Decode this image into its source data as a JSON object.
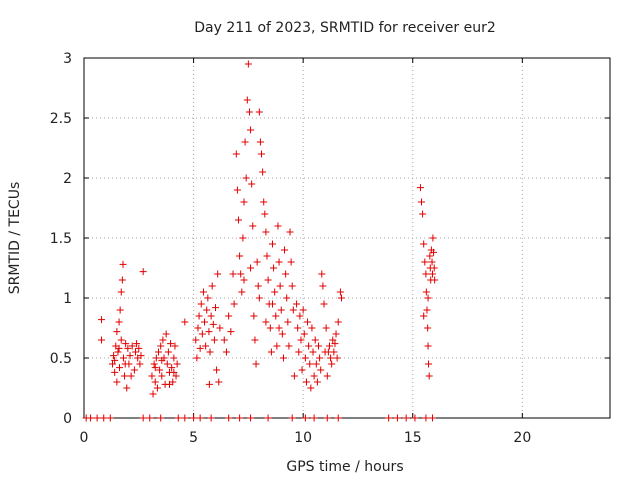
{
  "chart_data": {
    "type": "scatter",
    "title": "Day 211 of 2023, SRMTID for receiver eur2",
    "xlabel": "GPS time / hours",
    "ylabel": "SRMTID / TECUs",
    "xlim": [
      0,
      24
    ],
    "ylim": [
      0,
      3
    ],
    "x_ticks": [
      0,
      5,
      10,
      15,
      20
    ],
    "y_ticks": [
      0,
      0.5,
      1,
      1.5,
      2,
      2.5,
      3
    ],
    "x_tick_labels": [
      "0",
      "5",
      "10",
      "15",
      "20"
    ],
    "y_tick_labels": [
      "0",
      "0.5",
      "1",
      "1.5",
      "2",
      "2.5",
      "3"
    ],
    "grid": true,
    "marker": "+",
    "series": [
      {
        "name": "SRMTID",
        "color": "#e00000",
        "points": [
          [
            0.1,
            0
          ],
          [
            0.3,
            0
          ],
          [
            0.6,
            0
          ],
          [
            0.9,
            0
          ],
          [
            1.2,
            0
          ],
          [
            2.7,
            0
          ],
          [
            3.0,
            0
          ],
          [
            3.5,
            0
          ],
          [
            4.3,
            0
          ],
          [
            4.6,
            0
          ],
          [
            5.0,
            0
          ],
          [
            5.3,
            0
          ],
          [
            5.8,
            0
          ],
          [
            6.6,
            0
          ],
          [
            7.1,
            0
          ],
          [
            7.6,
            0
          ],
          [
            8.4,
            0
          ],
          [
            9.5,
            0
          ],
          [
            10.1,
            0
          ],
          [
            10.5,
            0
          ],
          [
            11.1,
            0
          ],
          [
            11.6,
            0
          ],
          [
            13.9,
            0
          ],
          [
            14.3,
            0
          ],
          [
            14.7,
            0
          ],
          [
            15.1,
            0
          ],
          [
            15.6,
            0
          ],
          [
            15.9,
            0
          ],
          [
            0.8,
            0.82
          ],
          [
            0.8,
            0.65
          ],
          [
            1.3,
            0.45
          ],
          [
            1.35,
            0.52
          ],
          [
            1.4,
            0.38
          ],
          [
            1.45,
            0.6
          ],
          [
            1.5,
            0.72
          ],
          [
            1.5,
            0.3
          ],
          [
            1.55,
            0.55
          ],
          [
            1.6,
            0.8
          ],
          [
            1.62,
            0.42
          ],
          [
            1.65,
            0.9
          ],
          [
            1.7,
            0.65
          ],
          [
            1.7,
            1.05
          ],
          [
            1.75,
            1.15
          ],
          [
            1.78,
            1.28
          ],
          [
            1.8,
            0.5
          ],
          [
            1.85,
            0.35
          ],
          [
            1.9,
            0.62
          ],
          [
            1.95,
            0.25
          ],
          [
            2.0,
            0.58
          ],
          [
            2.05,
            0.45
          ],
          [
            2.1,
            0.52
          ],
          [
            2.2,
            0.6
          ],
          [
            2.3,
            0.4
          ],
          [
            2.35,
            0.55
          ],
          [
            2.4,
            0.62
          ],
          [
            2.45,
            0.5
          ],
          [
            2.5,
            0.58
          ],
          [
            2.55,
            0.45
          ],
          [
            2.6,
            0.52
          ],
          [
            1.4,
            0.48
          ],
          [
            1.6,
            0.58
          ],
          [
            1.88,
            0.45
          ],
          [
            2.15,
            0.35
          ],
          [
            2.7,
            1.22
          ],
          [
            3.1,
            0.35
          ],
          [
            3.15,
            0.2
          ],
          [
            3.2,
            0.45
          ],
          [
            3.25,
            0.3
          ],
          [
            3.3,
            0.5
          ],
          [
            3.35,
            0.25
          ],
          [
            3.4,
            0.55
          ],
          [
            3.45,
            0.4
          ],
          [
            3.5,
            0.6
          ],
          [
            3.55,
            0.35
          ],
          [
            3.6,
            0.65
          ],
          [
            3.65,
            0.5
          ],
          [
            3.7,
            0.28
          ],
          [
            3.75,
            0.7
          ],
          [
            3.8,
            0.45
          ],
          [
            3.85,
            0.55
          ],
          [
            3.9,
            0.38
          ],
          [
            3.95,
            0.62
          ],
          [
            4.0,
            0.42
          ],
          [
            4.05,
            0.3
          ],
          [
            4.1,
            0.5
          ],
          [
            4.15,
            0.6
          ],
          [
            4.2,
            0.35
          ],
          [
            4.25,
            0.45
          ],
          [
            3.25,
            0.42
          ],
          [
            3.55,
            0.48
          ],
          [
            3.9,
            0.28
          ],
          [
            4.1,
            0.38
          ],
          [
            4.6,
            0.8
          ],
          [
            5.1,
            0.65
          ],
          [
            5.15,
            0.5
          ],
          [
            5.2,
            0.75
          ],
          [
            5.25,
            0.85
          ],
          [
            5.3,
            0.58
          ],
          [
            5.35,
            0.95
          ],
          [
            5.4,
            0.7
          ],
          [
            5.45,
            1.05
          ],
          [
            5.5,
            0.8
          ],
          [
            5.55,
            0.6
          ],
          [
            5.6,
            0.9
          ],
          [
            5.65,
            1.0
          ],
          [
            5.7,
            0.72
          ],
          [
            5.75,
            0.55
          ],
          [
            5.8,
            0.85
          ],
          [
            5.85,
            1.1
          ],
          [
            5.9,
            0.78
          ],
          [
            5.95,
            0.65
          ],
          [
            6.0,
            0.92
          ],
          [
            6.05,
            0.4
          ],
          [
            6.1,
            1.2
          ],
          [
            6.15,
            0.3
          ],
          [
            6.2,
            0.75
          ],
          [
            5.72,
            0.28
          ],
          [
            6.4,
            0.65
          ],
          [
            6.5,
            0.55
          ],
          [
            6.6,
            0.85
          ],
          [
            6.7,
            0.72
          ],
          [
            6.8,
            1.2
          ],
          [
            6.85,
            0.95
          ],
          [
            6.95,
            2.2
          ],
          [
            7.0,
            1.9
          ],
          [
            7.05,
            1.65
          ],
          [
            7.1,
            1.35
          ],
          [
            7.15,
            1.2
          ],
          [
            7.2,
            1.05
          ],
          [
            7.25,
            1.5
          ],
          [
            7.3,
            1.8
          ],
          [
            7.35,
            2.3
          ],
          [
            7.4,
            2.0
          ],
          [
            7.45,
            2.65
          ],
          [
            7.5,
            2.95
          ],
          [
            7.55,
            2.55
          ],
          [
            7.6,
            2.4
          ],
          [
            7.65,
            1.95
          ],
          [
            7.7,
            1.6
          ],
          [
            7.75,
            0.85
          ],
          [
            7.8,
            0.65
          ],
          [
            7.85,
            0.45
          ],
          [
            7.9,
            1.3
          ],
          [
            7.95,
            1.1
          ],
          [
            8.0,
            2.55
          ],
          [
            8.05,
            2.3
          ],
          [
            8.1,
            2.2
          ],
          [
            8.15,
            2.05
          ],
          [
            8.2,
            1.8
          ],
          [
            8.25,
            1.7
          ],
          [
            8.3,
            1.55
          ],
          [
            8.35,
            1.35
          ],
          [
            8.4,
            1.15
          ],
          [
            8.45,
            0.95
          ],
          [
            8.5,
            0.75
          ],
          [
            8.55,
            0.55
          ],
          [
            8.6,
            1.45
          ],
          [
            8.65,
            1.25
          ],
          [
            8.7,
            1.05
          ],
          [
            8.75,
            0.85
          ],
          [
            8.8,
            0.6
          ],
          [
            8.85,
            1.6
          ],
          [
            8.9,
            1.3
          ],
          [
            8.95,
            1.1
          ],
          [
            9.0,
            0.9
          ],
          [
            9.05,
            0.7
          ],
          [
            9.1,
            0.5
          ],
          [
            9.15,
            1.4
          ],
          [
            9.2,
            1.2
          ],
          [
            9.25,
            1.0
          ],
          [
            9.3,
            0.8
          ],
          [
            9.35,
            0.6
          ],
          [
            9.4,
            1.55
          ],
          [
            9.45,
            1.3
          ],
          [
            9.5,
            1.1
          ],
          [
            9.55,
            0.9
          ],
          [
            9.6,
            0.35
          ],
          [
            7.3,
            1.15
          ],
          [
            7.6,
            1.25
          ],
          [
            8.0,
            1.0
          ],
          [
            8.3,
            0.8
          ],
          [
            8.6,
            0.95
          ],
          [
            8.9,
            0.75
          ],
          [
            9.7,
            0.95
          ],
          [
            9.75,
            0.75
          ],
          [
            9.8,
            0.55
          ],
          [
            9.85,
            0.85
          ],
          [
            9.9,
            0.65
          ],
          [
            9.95,
            0.4
          ],
          [
            10.0,
            0.9
          ],
          [
            10.05,
            0.7
          ],
          [
            10.1,
            0.5
          ],
          [
            10.15,
            0.3
          ],
          [
            10.2,
            0.8
          ],
          [
            10.25,
            0.6
          ],
          [
            10.3,
            0.45
          ],
          [
            10.35,
            0.25
          ],
          [
            10.4,
            0.75
          ],
          [
            10.45,
            0.55
          ],
          [
            10.5,
            0.35
          ],
          [
            10.55,
            0.65
          ],
          [
            10.6,
            0.45
          ],
          [
            10.65,
            0.3
          ],
          [
            10.7,
            0.6
          ],
          [
            10.75,
            0.5
          ],
          [
            10.8,
            0.4
          ],
          [
            10.85,
            1.2
          ],
          [
            10.9,
            1.1
          ],
          [
            10.95,
            0.95
          ],
          [
            11.0,
            0.55
          ],
          [
            11.05,
            0.75
          ],
          [
            11.1,
            0.35
          ],
          [
            11.15,
            0.55
          ],
          [
            11.2,
            0.6
          ],
          [
            11.25,
            0.5
          ],
          [
            11.3,
            0.45
          ],
          [
            11.35,
            0.65
          ],
          [
            11.4,
            0.55
          ],
          [
            11.45,
            0.62
          ],
          [
            11.5,
            0.7
          ],
          [
            11.55,
            0.5
          ],
          [
            11.6,
            0.8
          ],
          [
            11.7,
            1.05
          ],
          [
            11.75,
            1.0
          ],
          [
            15.35,
            1.92
          ],
          [
            15.4,
            1.8
          ],
          [
            15.45,
            1.7
          ],
          [
            15.5,
            1.45
          ],
          [
            15.55,
            1.3
          ],
          [
            15.6,
            1.2
          ],
          [
            15.62,
            1.05
          ],
          [
            15.65,
            0.9
          ],
          [
            15.68,
            0.75
          ],
          [
            15.7,
            0.6
          ],
          [
            15.72,
            0.45
          ],
          [
            15.75,
            0.35
          ],
          [
            15.78,
            1.35
          ],
          [
            15.8,
            1.25
          ],
          [
            15.82,
            1.15
          ],
          [
            15.85,
            1.4
          ],
          [
            15.88,
            1.3
          ],
          [
            15.9,
            1.2
          ],
          [
            15.92,
            1.5
          ],
          [
            15.95,
            1.38
          ],
          [
            15.98,
            1.25
          ],
          [
            16.0,
            1.15
          ],
          [
            15.5,
            0.85
          ],
          [
            15.7,
            1.0
          ]
        ]
      }
    ]
  }
}
